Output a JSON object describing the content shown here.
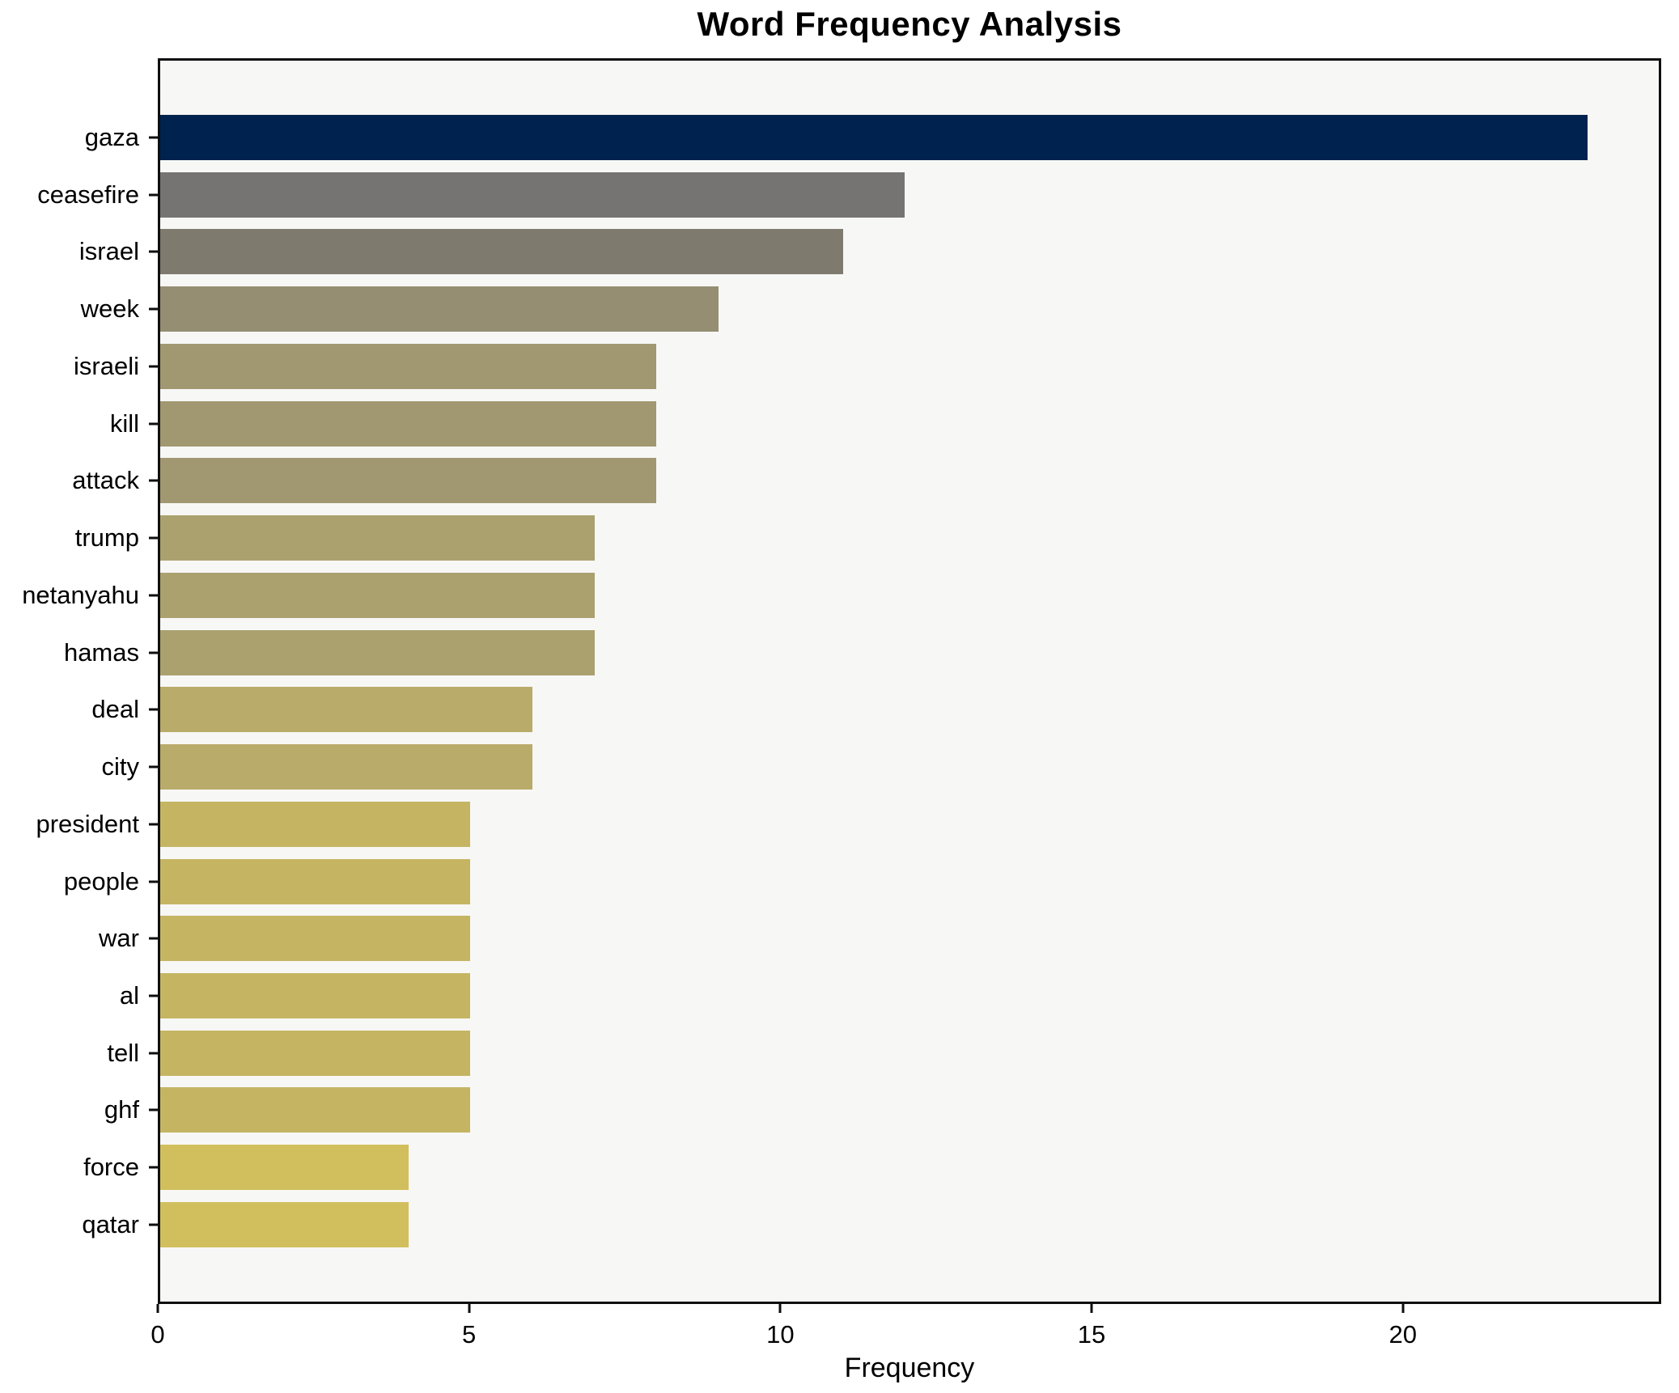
{
  "title": "Word Frequency Analysis",
  "xlabel": "Frequency",
  "chart_data": {
    "type": "bar",
    "orientation": "horizontal",
    "title": "Word Frequency Analysis",
    "xlabel": "Frequency",
    "ylabel": "",
    "grid": false,
    "legend": "none",
    "plot_background": "#f7f7f5",
    "spine_color": "#0f0f0f",
    "xlim": [
      0,
      24.15
    ],
    "x_ticks": [
      0,
      5,
      10,
      15,
      20
    ],
    "categories": [
      "gaza",
      "ceasefire",
      "israel",
      "week",
      "israeli",
      "kill",
      "attack",
      "trump",
      "netanyahu",
      "hamas",
      "deal",
      "city",
      "president",
      "people",
      "war",
      "al",
      "tell",
      "ghf",
      "force",
      "qatar"
    ],
    "values": [
      23,
      12,
      11,
      9,
      8,
      8,
      8,
      7,
      7,
      7,
      6,
      6,
      5,
      5,
      5,
      5,
      5,
      5,
      4,
      4
    ],
    "bar_colors": [
      "#00224e",
      "#757473",
      "#7e7a6e",
      "#958e72",
      "#a19872",
      "#a19872",
      "#a19872",
      "#aba16f",
      "#aba16f",
      "#aba16f",
      "#b9ab69",
      "#b9ab69",
      "#c5b563",
      "#c5b563",
      "#c5b563",
      "#c5b563",
      "#c5b563",
      "#c5b563",
      "#d1bf5e",
      "#d1bf5e"
    ],
    "colormap_note": "cividis, dark navy for highest frequency to yellow-khaki for lowest"
  }
}
